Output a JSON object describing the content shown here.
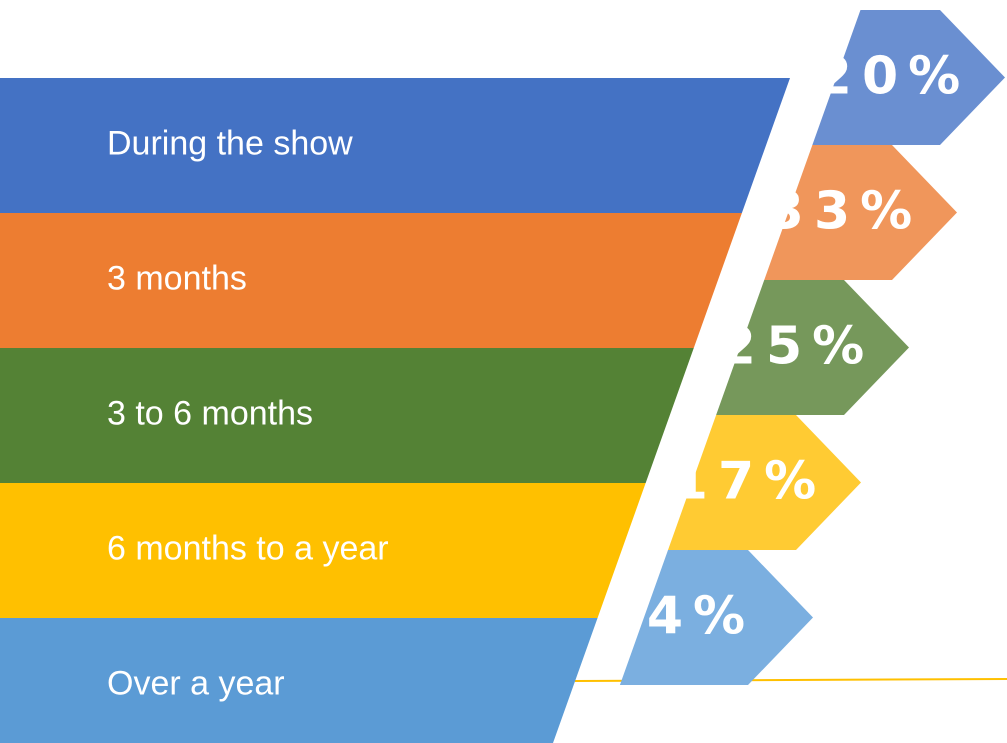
{
  "chart_data": {
    "type": "funnel",
    "categories": [
      "During the show",
      "3 months",
      "3 to 6 months",
      "6 months to a year",
      "Over a year"
    ],
    "values": [
      20,
      33,
      25,
      17,
      4
    ],
    "value_labels": [
      "20%",
      "33%",
      "25%",
      "17%",
      "4%"
    ],
    "colors": [
      "#4472c4",
      "#ed7d31",
      "#548235",
      "#ffc000",
      "#5b9bd5"
    ],
    "tag_colors": [
      "#6a8fd1",
      "#f0965b",
      "#76985b",
      "#ffcb33",
      "#7bafe0"
    ]
  }
}
